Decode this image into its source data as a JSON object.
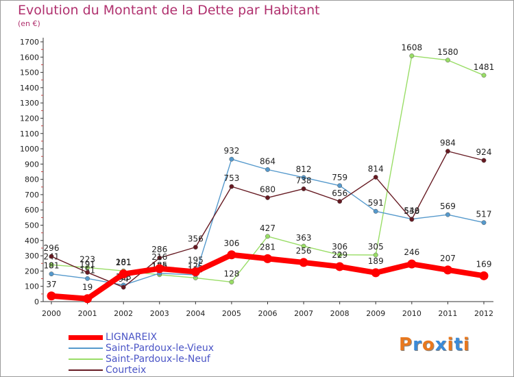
{
  "title": "Evolution du Montant de la Dette par Habitant",
  "subtitle": "(en €)",
  "logo": {
    "text": "Proxiti",
    "colors": [
      "#e8781e",
      "#3a8ad8",
      "#e8781e",
      "#3a8ad8",
      "#e8781e",
      "#3a8ad8",
      "#e8781e"
    ]
  },
  "chart_data": {
    "type": "line",
    "x": [
      "2000",
      "2001",
      "2002",
      "2003",
      "2004",
      "2005",
      "2006",
      "2007",
      "2008",
      "2009",
      "2010",
      "2011",
      "2012"
    ],
    "ylim": [
      0,
      1700
    ],
    "yticks": [
      0,
      100,
      200,
      300,
      400,
      500,
      600,
      700,
      800,
      900,
      1000,
      1100,
      1200,
      1300,
      1400,
      1500,
      1600,
      1700
    ],
    "grid": false,
    "legend": "bottom-left",
    "series": [
      {
        "name": "Saint-Pardoux-le-Neuf",
        "color": "#99dd66",
        "values": [
          241,
          223,
          201,
          176,
          155,
          128,
          427,
          363,
          306,
          305,
          1608,
          1580,
          1481
        ]
      },
      {
        "name": "Saint-Pardoux-le-Vieux",
        "color": "#5599cc",
        "values": [
          181,
          151,
          108,
          185,
          175,
          932,
          864,
          812,
          759,
          591,
          540,
          569,
          517
        ]
      },
      {
        "name": "Courteix",
        "color": "#661a22",
        "values": [
          296,
          191,
          94,
          286,
          356,
          753,
          680,
          738,
          656,
          814,
          538,
          984,
          924
        ]
      },
      {
        "name": "LIGNAREIX",
        "color": "#ff0000",
        "values": [
          37,
          19,
          181,
          216,
          195,
          306,
          281,
          256,
          229,
          189,
          246,
          207,
          169
        ]
      }
    ]
  }
}
